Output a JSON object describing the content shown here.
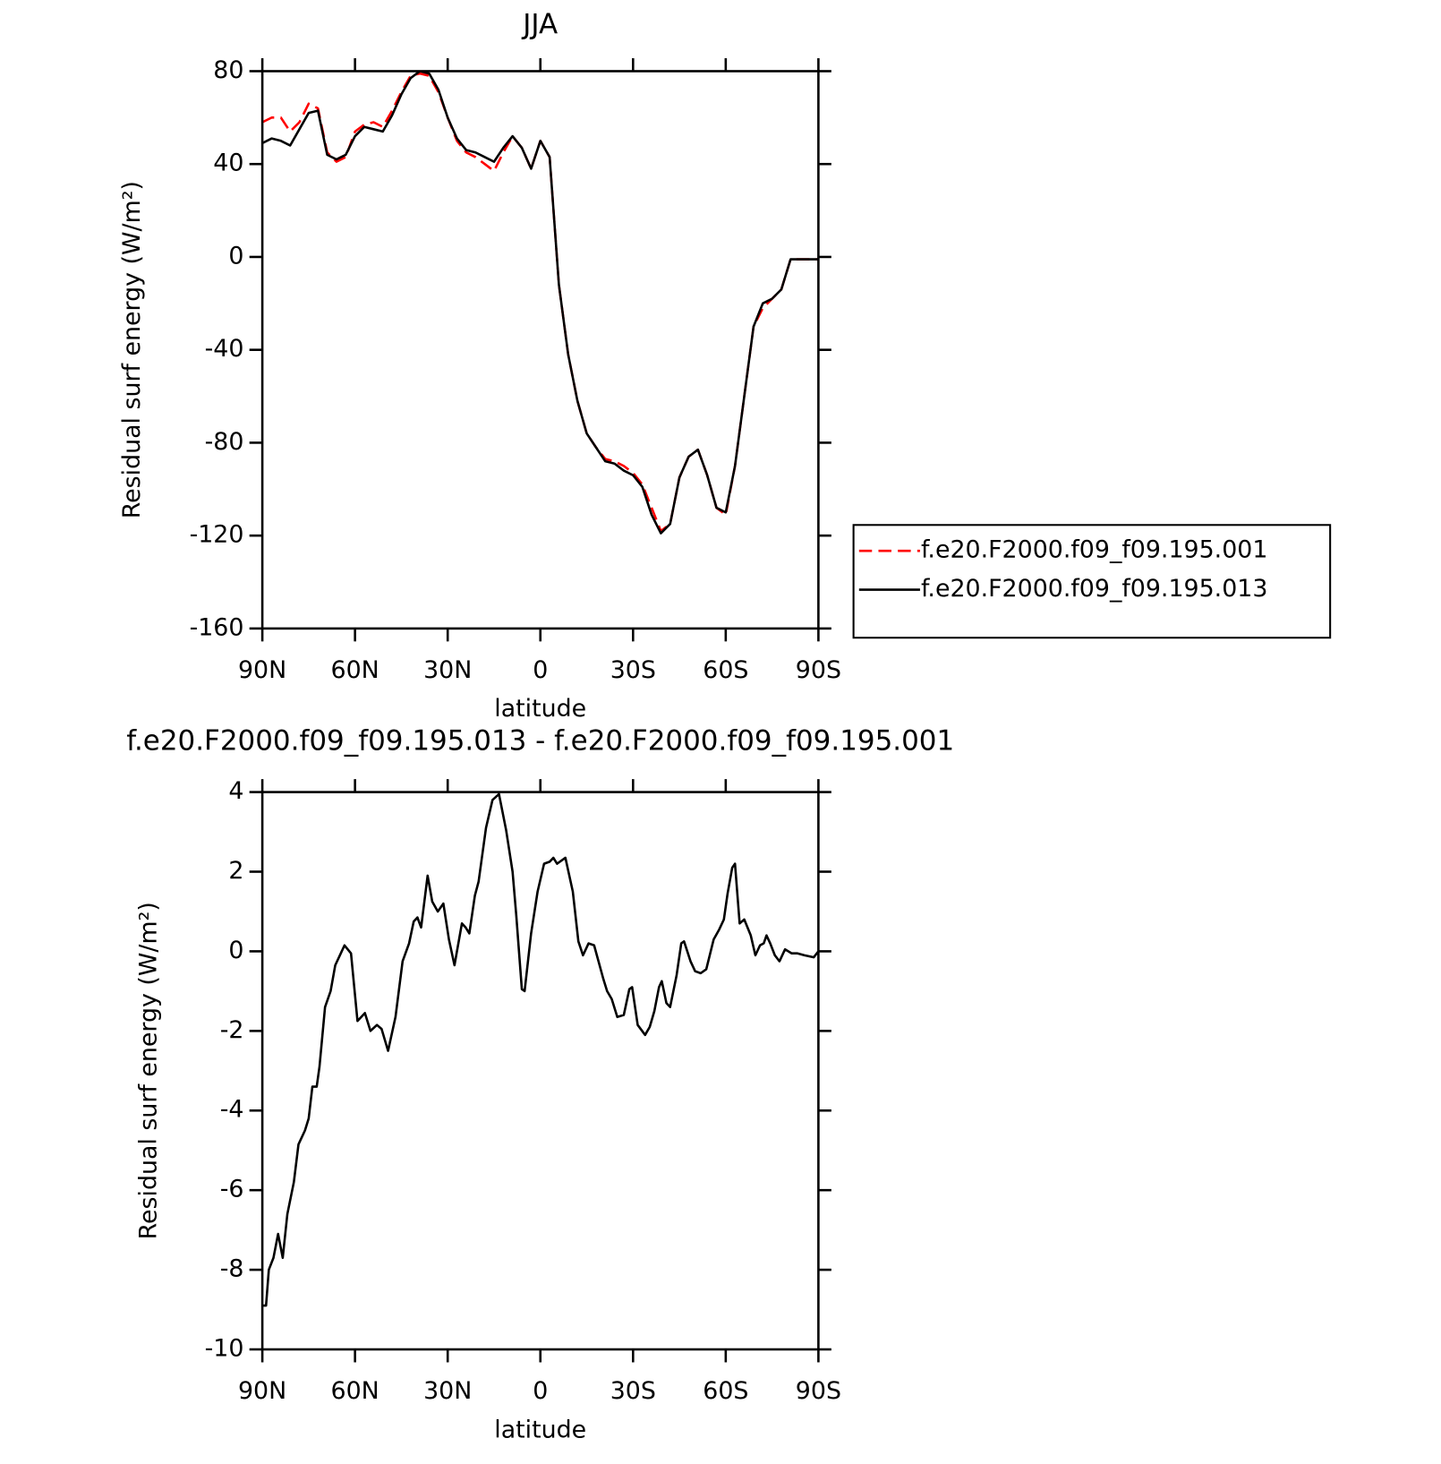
{
  "chart_data": [
    {
      "type": "line",
      "title": "JJA",
      "ylabel": "Residual surf energy (W/m²)",
      "xlabel": "latitude",
      "x": [
        90,
        87,
        84,
        81,
        78,
        75,
        72,
        69,
        66,
        63,
        60,
        57,
        54,
        51,
        48,
        45,
        42,
        39,
        36,
        33,
        30,
        27,
        24,
        21,
        18,
        15,
        12,
        9,
        6,
        3,
        0,
        -3,
        -6,
        -9,
        -12,
        -15,
        -18,
        -21,
        -24,
        -27,
        -30,
        -33,
        -36,
        -39,
        -42,
        -45,
        -48,
        -51,
        -54,
        -57,
        -60,
        -63,
        -66,
        -69,
        -72,
        -75,
        -78,
        -81,
        -84,
        -87,
        -90
      ],
      "series": [
        {
          "name": "f.e20.F2000.f09_f09.195.001",
          "color": "#ff0000",
          "dash": true,
          "values": [
            58,
            60,
            60,
            54,
            58,
            66,
            64,
            45,
            41,
            43,
            54,
            57,
            58,
            56,
            63,
            71,
            78,
            79,
            78,
            71,
            60,
            50,
            45,
            43,
            40,
            37,
            45,
            52,
            47,
            38,
            50,
            43,
            -12,
            -42,
            -62,
            -76,
            -82,
            -87,
            -88,
            -90,
            -93,
            -98,
            -108,
            -118,
            -115,
            -95,
            -86,
            -83,
            -94,
            -108,
            -111,
            -90,
            -60,
            -30,
            -22,
            -18,
            -14,
            -1,
            -1,
            -1,
            -1
          ]
        },
        {
          "name": "f.e20.F2000.f09_f09.195.013",
          "color": "#000000",
          "dash": false,
          "values": [
            49,
            51,
            50,
            48,
            55,
            62,
            63,
            44,
            42,
            44,
            52,
            56,
            55,
            54,
            61,
            70,
            77,
            80,
            79,
            72,
            60,
            51,
            46,
            45,
            43,
            41,
            47,
            52,
            47,
            38,
            50,
            43,
            -12,
            -42,
            -62,
            -76,
            -82,
            -88,
            -89,
            -92,
            -94,
            -99,
            -111,
            -119,
            -115,
            -95,
            -86,
            -83,
            -94,
            -108,
            -110,
            -90,
            -60,
            -30,
            -20,
            -18,
            -14,
            -1,
            -1,
            -1,
            -1
          ]
        }
      ],
      "xlim": [
        90,
        -90
      ],
      "xticks": [
        {
          "value": 90,
          "label": "90N"
        },
        {
          "value": 60,
          "label": "60N"
        },
        {
          "value": 30,
          "label": "30N"
        },
        0,
        {
          "value": -30,
          "label": "30S"
        },
        {
          "value": -60,
          "label": "60S"
        },
        {
          "value": -90,
          "label": "90S"
        }
      ],
      "ylim": [
        -160,
        80
      ],
      "yticks": [
        -160,
        -120,
        -80,
        -40,
        0,
        40,
        80
      ],
      "grid": false,
      "legend": "right"
    },
    {
      "type": "line",
      "title": "f.e20.F2000.f09_f09.195.013 - f.e20.F2000.f09_f09.195.001",
      "ylabel": "Residual surf energy (W/m²)",
      "xlabel": "latitude",
      "x": [
        90,
        88.8,
        87.9,
        86.4,
        84.9,
        83.4,
        81.9,
        79.8,
        78.3,
        76.2,
        75.0,
        73.8,
        72.4,
        71.5,
        69.7,
        67.9,
        66.4,
        64.3,
        63.4,
        61.3,
        59.2,
        56.8,
        55.0,
        52.9,
        51.4,
        49.3,
        46.9,
        44.6,
        42.5,
        41.0,
        39.8,
        38.6,
        36.5,
        35.0,
        33.2,
        31.4,
        29.6,
        27.8,
        25.4,
        24.2,
        23.0,
        21.2,
        20.0,
        17.6,
        15.5,
        13.4,
        11.1,
        9.0,
        7.8,
        6.0,
        5.1,
        3.0,
        0.9,
        -1.2,
        -3.0,
        -4.2,
        -5.4,
        -8.1,
        -10.5,
        -12.3,
        -13.8,
        -15.6,
        -17.4,
        -20.4,
        -21.6,
        -23.1,
        -24.9,
        -27.0,
        -28.8,
        -29.7,
        -31.5,
        -33.9,
        -35.4,
        -36.9,
        -38.4,
        -39.3,
        -40.8,
        -42.0,
        -44.1,
        -45.6,
        -46.5,
        -48.6,
        -50.1,
        -51.9,
        -53.7,
        -56.1,
        -57.9,
        -59.4,
        -60.6,
        -62.1,
        -63.0,
        -64.5,
        -66.0,
        -68.1,
        -69.6,
        -71.1,
        -72.3,
        -73.2,
        -74.4,
        -75.9,
        -77.4,
        -79.2,
        -81.3,
        -83.1,
        -85.5,
        -88.5,
        -90
      ],
      "series": [
        {
          "color": "#000000",
          "dash": false,
          "values": [
            -8.9,
            -8.9,
            -8.0,
            -7.7,
            -7.1,
            -7.7,
            -6.6,
            -5.8,
            -4.85,
            -4.5,
            -4.2,
            -3.4,
            -3.4,
            -2.9,
            -1.4,
            -1.0,
            -0.35,
            0.0,
            0.15,
            -0.05,
            -1.75,
            -1.55,
            -2.0,
            -1.85,
            -1.95,
            -2.5,
            -1.65,
            -0.25,
            0.2,
            0.75,
            0.85,
            0.6,
            1.9,
            1.25,
            1.0,
            1.2,
            0.3,
            -0.35,
            0.7,
            0.6,
            0.45,
            1.4,
            1.75,
            3.1,
            3.8,
            3.95,
            3.05,
            2.0,
            0.9,
            -0.95,
            -1.0,
            0.45,
            1.5,
            2.2,
            2.25,
            2.35,
            2.2,
            2.35,
            1.5,
            0.25,
            -0.1,
            0.2,
            0.15,
            -0.7,
            -1.0,
            -1.2,
            -1.65,
            -1.6,
            -0.95,
            -0.9,
            -1.85,
            -2.1,
            -1.9,
            -1.5,
            -0.9,
            -0.75,
            -1.3,
            -1.4,
            -0.6,
            0.2,
            0.25,
            -0.25,
            -0.5,
            -0.55,
            -0.45,
            0.3,
            0.55,
            0.8,
            1.45,
            2.1,
            2.2,
            0.7,
            0.8,
            0.4,
            -0.1,
            0.15,
            0.2,
            0.4,
            0.2,
            -0.1,
            -0.25,
            0.05,
            -0.05,
            -0.05,
            -0.1,
            -0.15,
            0.0
          ]
        }
      ],
      "xlim": [
        90,
        -90
      ],
      "xticks": [
        {
          "value": 90,
          "label": "90N"
        },
        {
          "value": 60,
          "label": "60N"
        },
        {
          "value": 30,
          "label": "30N"
        },
        0,
        {
          "value": -30,
          "label": "30S"
        },
        {
          "value": -60,
          "label": "60S"
        },
        {
          "value": -90,
          "label": "90S"
        }
      ],
      "ylim": [
        -10,
        4
      ],
      "yticks": [
        -10,
        -8,
        -6,
        -4,
        -2,
        0,
        2,
        4
      ],
      "grid": false
    }
  ]
}
